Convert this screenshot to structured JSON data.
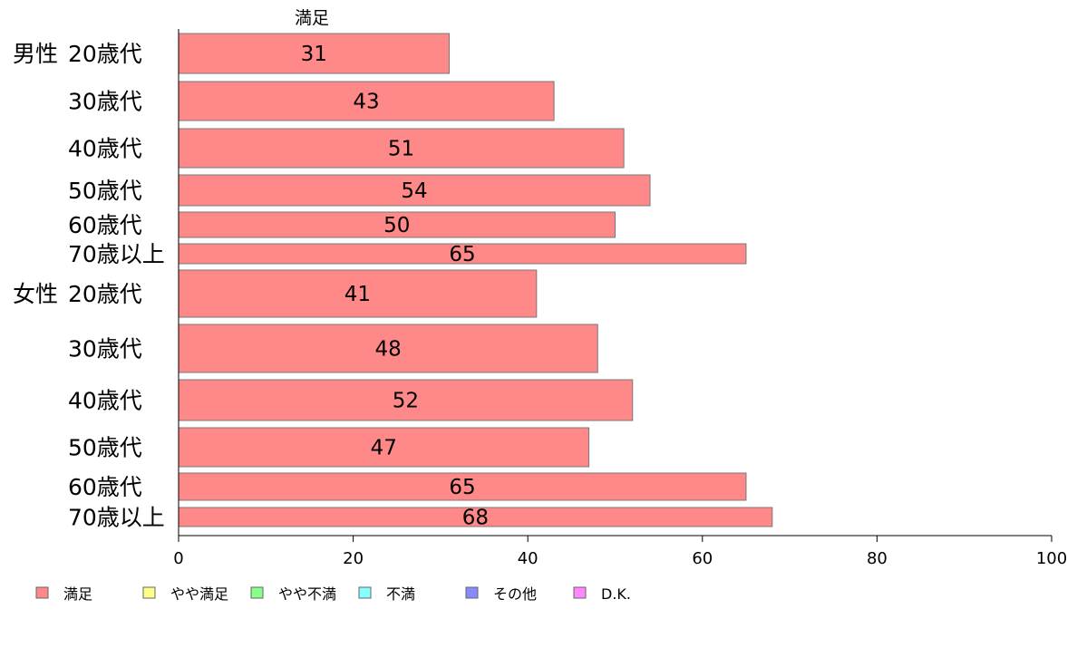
{
  "chart_data": {
    "type": "bar",
    "orientation": "horizontal",
    "stacked": true,
    "series_header": "満足",
    "groups": [
      {
        "label": "男性",
        "categories": [
          "20歳代",
          "30歳代",
          "40歳代",
          "50歳代",
          "60歳代",
          "70歳以上"
        ]
      },
      {
        "label": "女性",
        "categories": [
          "20歳代",
          "30歳代",
          "40歳代",
          "50歳代",
          "60歳代",
          "70歳以上"
        ]
      }
    ],
    "series": [
      {
        "name": "満足",
        "color": "#ff8888",
        "values": [
          31,
          43,
          51,
          54,
          50,
          65,
          41,
          48,
          52,
          47,
          65,
          68
        ]
      }
    ],
    "xlim": [
      0,
      100
    ],
    "xticks": [
      "0",
      "20",
      "40",
      "60",
      "80",
      "100"
    ],
    "legend": {
      "position": "bottom-left",
      "items": [
        {
          "name": "満足",
          "color": "#ff8888"
        },
        {
          "name": "やや満足",
          "color": "#ffff88"
        },
        {
          "name": "やや不満",
          "color": "#88ff88"
        },
        {
          "name": "不満",
          "color": "#88ffff"
        },
        {
          "name": "その他",
          "color": "#8888ff"
        },
        {
          "name": "D.K.",
          "color": "#ff88ff"
        }
      ]
    },
    "grid": false
  }
}
